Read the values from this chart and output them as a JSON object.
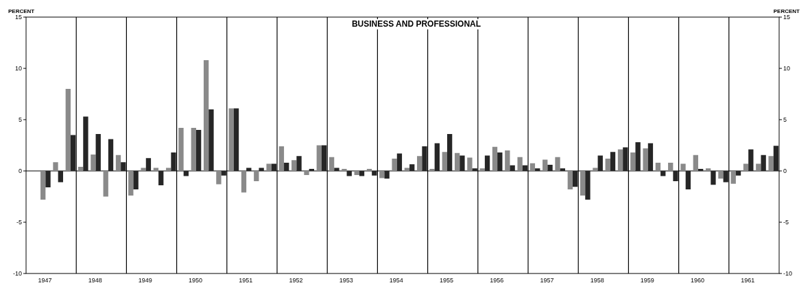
{
  "chart_data": {
    "type": "bar",
    "title": "BUSINESS AND PROFESSIONAL",
    "ylabel": "PERCENT",
    "y2label": "PERCENT",
    "categories": [
      null,
      "1947",
      null,
      null,
      null,
      "1948",
      null,
      null,
      null,
      "1949",
      null,
      null,
      null,
      "1950",
      null,
      null,
      null,
      "1951",
      null,
      null,
      null,
      "1952",
      null,
      null,
      null,
      "1953",
      null,
      null,
      null,
      "1954",
      null,
      null,
      null,
      "1955",
      null,
      null,
      null,
      "1956",
      null,
      null,
      null,
      "1957",
      null,
      null,
      null,
      "1958",
      null,
      null,
      null,
      "1959",
      null,
      null,
      null,
      "1960",
      null,
      null,
      null,
      "1961",
      null,
      null
    ],
    "series": [
      {
        "color": "#8a8a8a",
        "values": [
          null,
          -2.8,
          0.85,
          8.0,
          0.4,
          1.6,
          -2.5,
          1.55,
          -2.4,
          0.3,
          0.3,
          0.3,
          4.2,
          4.2,
          10.8,
          -1.3,
          6.1,
          -2.1,
          -1.0,
          0.7,
          2.4,
          1.05,
          -0.4,
          2.5,
          1.35,
          0.2,
          -0.4,
          0.2,
          -0.7,
          1.2,
          0.3,
          1.45,
          0.2,
          1.85,
          1.75,
          1.3,
          0.25,
          2.35,
          2.0,
          1.35,
          0.75,
          1.1,
          1.35,
          -1.8,
          -2.4,
          0.3,
          1.2,
          2.1,
          1.8,
          2.2,
          0.8,
          0.8,
          0.7,
          1.55,
          0.25,
          -0.75,
          -1.25,
          0.7,
          0.7,
          1.45
        ]
      },
      {
        "color": "#262626",
        "values": [
          null,
          -1.6,
          -1.1,
          3.5,
          5.3,
          3.6,
          3.1,
          0.85,
          -1.8,
          1.25,
          -1.4,
          1.8,
          -0.5,
          4.0,
          6.0,
          -0.45,
          6.1,
          0.3,
          0.3,
          0.7,
          0.8,
          1.45,
          0.2,
          2.5,
          0.3,
          -0.5,
          -0.5,
          -0.45,
          -0.75,
          1.7,
          0.65,
          2.4,
          2.7,
          3.6,
          1.5,
          0.25,
          1.5,
          1.8,
          0.55,
          0.55,
          0.25,
          0.6,
          0.25,
          -1.55,
          -2.8,
          1.5,
          1.85,
          2.3,
          2.8,
          2.7,
          -0.5,
          -1.0,
          -1.8,
          0.2,
          -1.35,
          -1.1,
          -0.45,
          2.1,
          1.55,
          2.45
        ]
      }
    ],
    "ylim": [
      -10,
      15
    ],
    "yticks": [
      -10,
      -5,
      0,
      5,
      10,
      15
    ],
    "y2lim": [
      -10,
      15
    ],
    "y2ticks": [
      -10,
      -5,
      0,
      5,
      10,
      15
    ],
    "ref_lines": [
      {
        "axis": "y",
        "value": 0
      }
    ],
    "grid": "x"
  }
}
